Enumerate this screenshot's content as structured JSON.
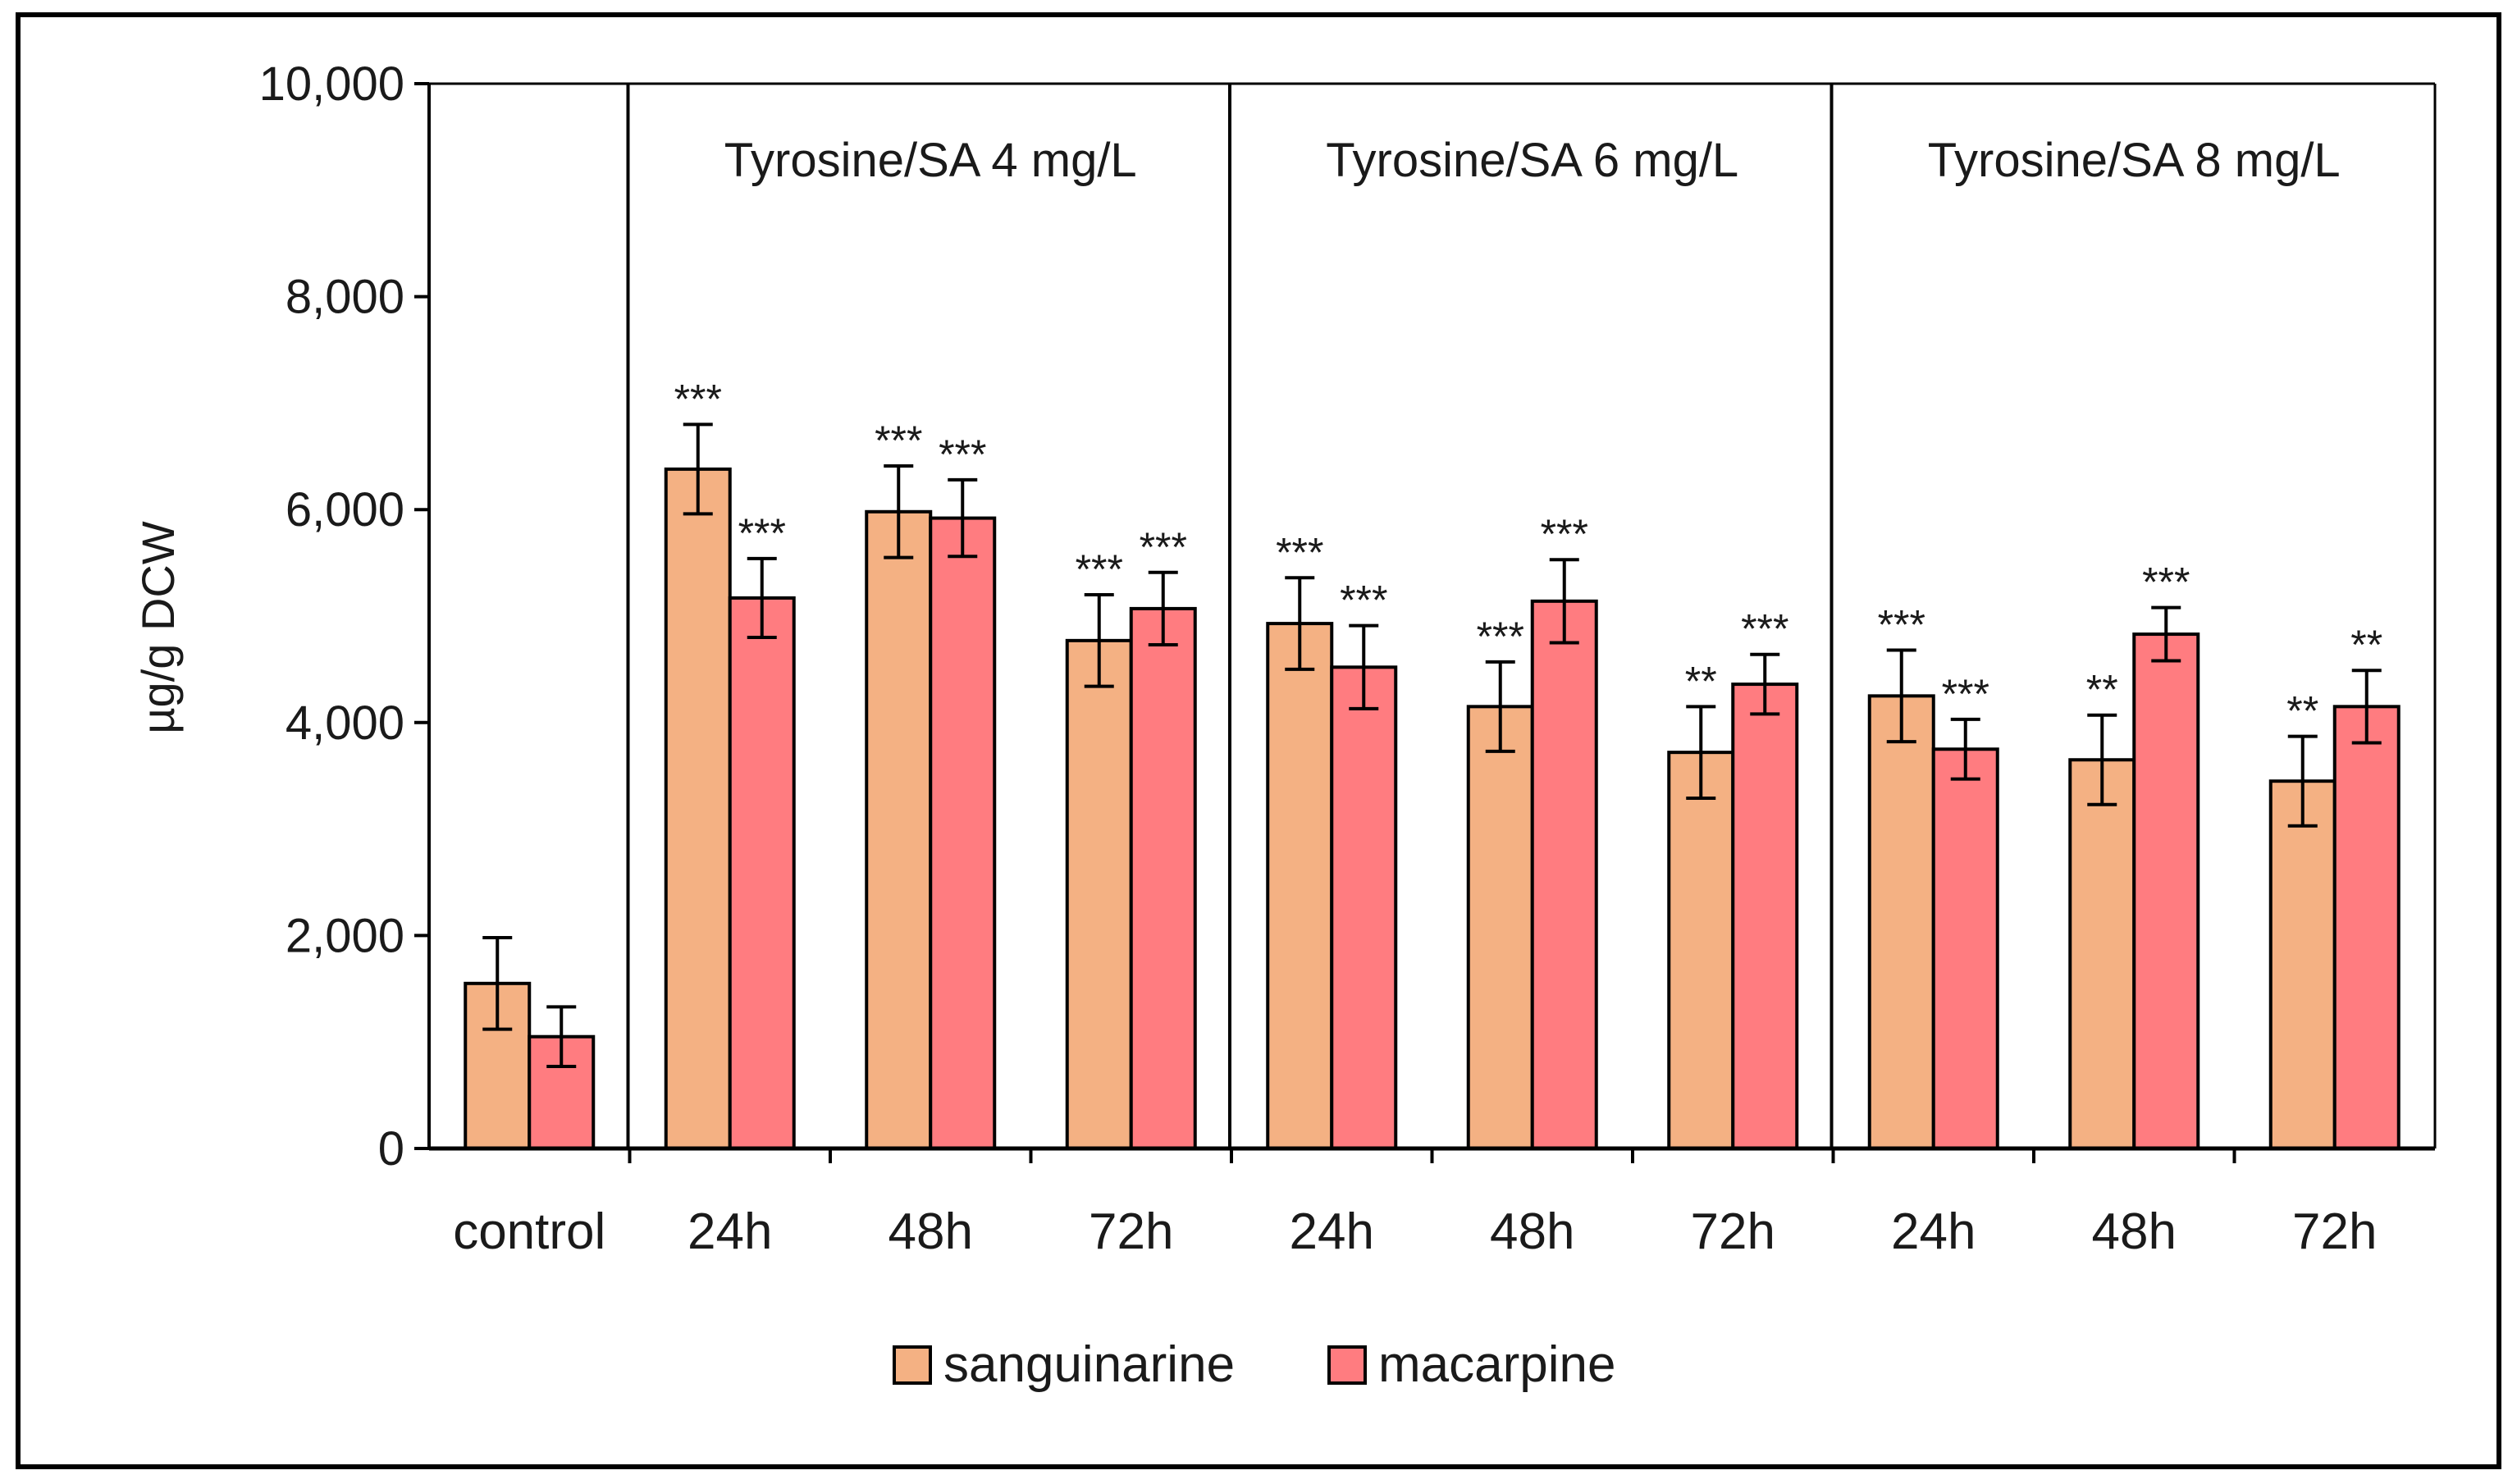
{
  "chart_data": {
    "type": "bar",
    "title": "",
    "ylabel": "µg/g DCW",
    "xlabel": "",
    "ylim": [
      0,
      10000
    ],
    "yticks": [
      0,
      2000,
      4000,
      6000,
      8000,
      10000
    ],
    "ytick_labels": [
      "0",
      "2,000",
      "4,000",
      "6,000",
      "8,000",
      "10,000"
    ],
    "groups": [
      {
        "label": "",
        "categories": [
          "control"
        ]
      },
      {
        "label": "Tyrosine/SA 4 mg/L",
        "categories": [
          "24h",
          "48h",
          "72h"
        ]
      },
      {
        "label": "Tyrosine/SA 6 mg/L",
        "categories": [
          "24h",
          "48h",
          "72h"
        ]
      },
      {
        "label": "Tyrosine/SA 8 mg/L",
        "categories": [
          "24h",
          "48h",
          "72h"
        ]
      }
    ],
    "categories": [
      "control",
      "24h",
      "48h",
      "72h",
      "24h",
      "48h",
      "72h",
      "24h",
      "48h",
      "72h"
    ],
    "series": [
      {
        "name": "sanguinarine",
        "color": "#F4B183",
        "values": [
          1550,
          6380,
          5980,
          4770,
          4930,
          4150,
          3720,
          4250,
          3650,
          3450
        ],
        "errors": [
          430,
          420,
          430,
          430,
          430,
          420,
          430,
          430,
          420,
          420
        ],
        "significance": [
          "",
          "***",
          "***",
          "***",
          "***",
          "***",
          "**",
          "***",
          "**",
          "**"
        ]
      },
      {
        "name": "macarpine",
        "color": "#FF7C80",
        "values": [
          1050,
          5170,
          5920,
          5070,
          4520,
          5140,
          4360,
          3750,
          4830,
          4150
        ],
        "errors": [
          280,
          370,
          360,
          340,
          390,
          390,
          280,
          280,
          250,
          340
        ],
        "significance": [
          "",
          "***",
          "***",
          "***",
          "***",
          "***",
          "***",
          "***",
          "***",
          "**"
        ]
      }
    ],
    "legend": {
      "position": "bottom-center",
      "entries": [
        "sanguinarine",
        "macarpine"
      ]
    }
  }
}
